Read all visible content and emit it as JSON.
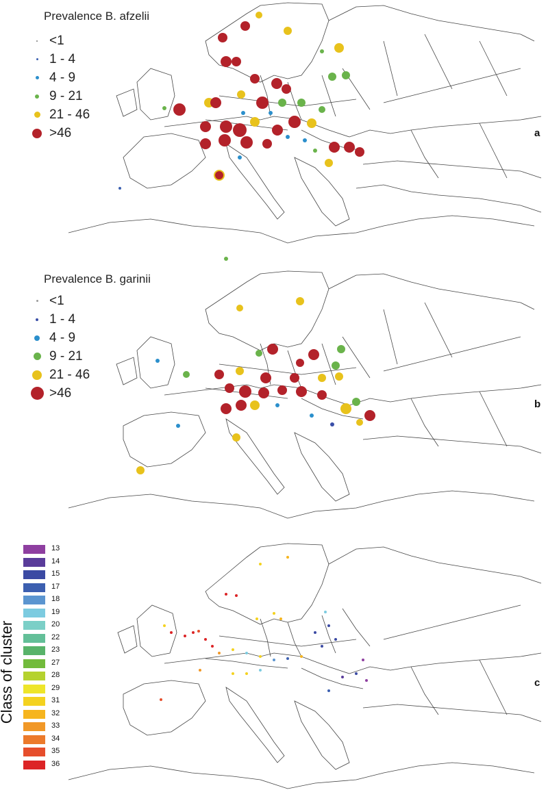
{
  "panels": [
    {
      "id": "a",
      "letter": "a",
      "legend_title": "Prevalence B. afzelii",
      "classes": [
        {
          "label": "<1",
          "color": "#7a7a7a",
          "size": 2
        },
        {
          "label": "1 - 4",
          "color": "#3a5fb0",
          "size": 3
        },
        {
          "label": "4 - 9",
          "color": "#2b8fcc",
          "size": 5
        },
        {
          "label": "9 - 21",
          "color": "#6ab34b",
          "size": 6
        },
        {
          "label": "21 - 46",
          "color": "#e8c21c",
          "size": 9
        },
        {
          "label": ">46",
          "color": "#b3222a",
          "size": 14
        }
      ]
    },
    {
      "id": "b",
      "letter": "b",
      "legend_title": "Prevalence B. garinii",
      "classes": [
        {
          "label": "<1",
          "color": "#9a9a9a",
          "size": 3
        },
        {
          "label": "1 - 4",
          "color": "#3a4fa8",
          "size": 4
        },
        {
          "label": "4 - 9",
          "color": "#2b8fcc",
          "size": 8
        },
        {
          "label": "9 - 21",
          "color": "#6ab34b",
          "size": 11
        },
        {
          "label": "21 - 46",
          "color": "#e8c21c",
          "size": 14
        },
        {
          "label": ">46",
          "color": "#b3222a",
          "size": 19
        }
      ]
    }
  ],
  "cluster_panel": {
    "letter": "c",
    "legend_title": "Class of cluster",
    "classes": [
      {
        "label": "13",
        "color": "#8e3fa0"
      },
      {
        "label": "14",
        "color": "#5a3c9a"
      },
      {
        "label": "15",
        "color": "#3b4aa3"
      },
      {
        "label": "17",
        "color": "#3c5fb0"
      },
      {
        "label": "18",
        "color": "#5b95d0"
      },
      {
        "label": "19",
        "color": "#7ccbe0"
      },
      {
        "label": "20",
        "color": "#7bcfc7"
      },
      {
        "label": "22",
        "color": "#63bf98"
      },
      {
        "label": "23",
        "color": "#58b36a"
      },
      {
        "label": "27",
        "color": "#72bb3c"
      },
      {
        "label": "28",
        "color": "#b5d22e"
      },
      {
        "label": "29",
        "color": "#eee52a"
      },
      {
        "label": "31",
        "color": "#f4d21f"
      },
      {
        "label": "32",
        "color": "#f6b51e"
      },
      {
        "label": "33",
        "color": "#f19827"
      },
      {
        "label": "34",
        "color": "#ec7a2b"
      },
      {
        "label": "35",
        "color": "#e64e2c"
      },
      {
        "label": "36",
        "color": "#dc2426"
      }
    ]
  }
}
